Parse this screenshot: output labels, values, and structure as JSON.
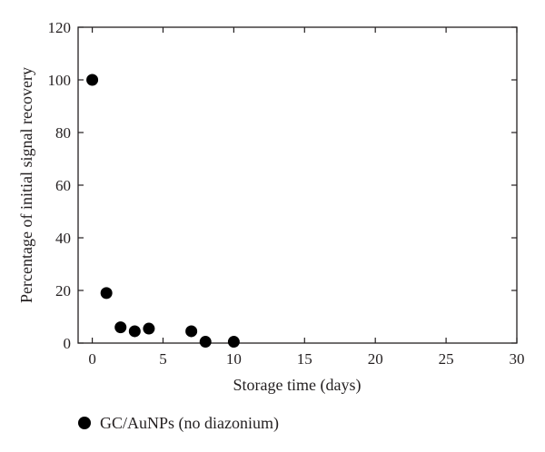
{
  "chart_data": {
    "type": "scatter",
    "xlabel": "Storage time (days)",
    "ylabel": "Percentage of initial signal recovery",
    "xlim": [
      -1,
      30
    ],
    "ylim": [
      0,
      120
    ],
    "xticks": [
      0,
      5,
      10,
      15,
      20,
      25,
      30
    ],
    "yticks": [
      0,
      20,
      40,
      60,
      80,
      100,
      120
    ],
    "grid": false,
    "legend_position": "bottom-left",
    "series": [
      {
        "name": "GC/AuNPs (no diazonium)",
        "color": "#000000",
        "marker": "filled-circle",
        "x": [
          0,
          1,
          2,
          3,
          4,
          7,
          8,
          10
        ],
        "y": [
          100,
          19,
          6,
          4.5,
          5.5,
          4.5,
          0.5,
          0.5
        ]
      }
    ]
  }
}
